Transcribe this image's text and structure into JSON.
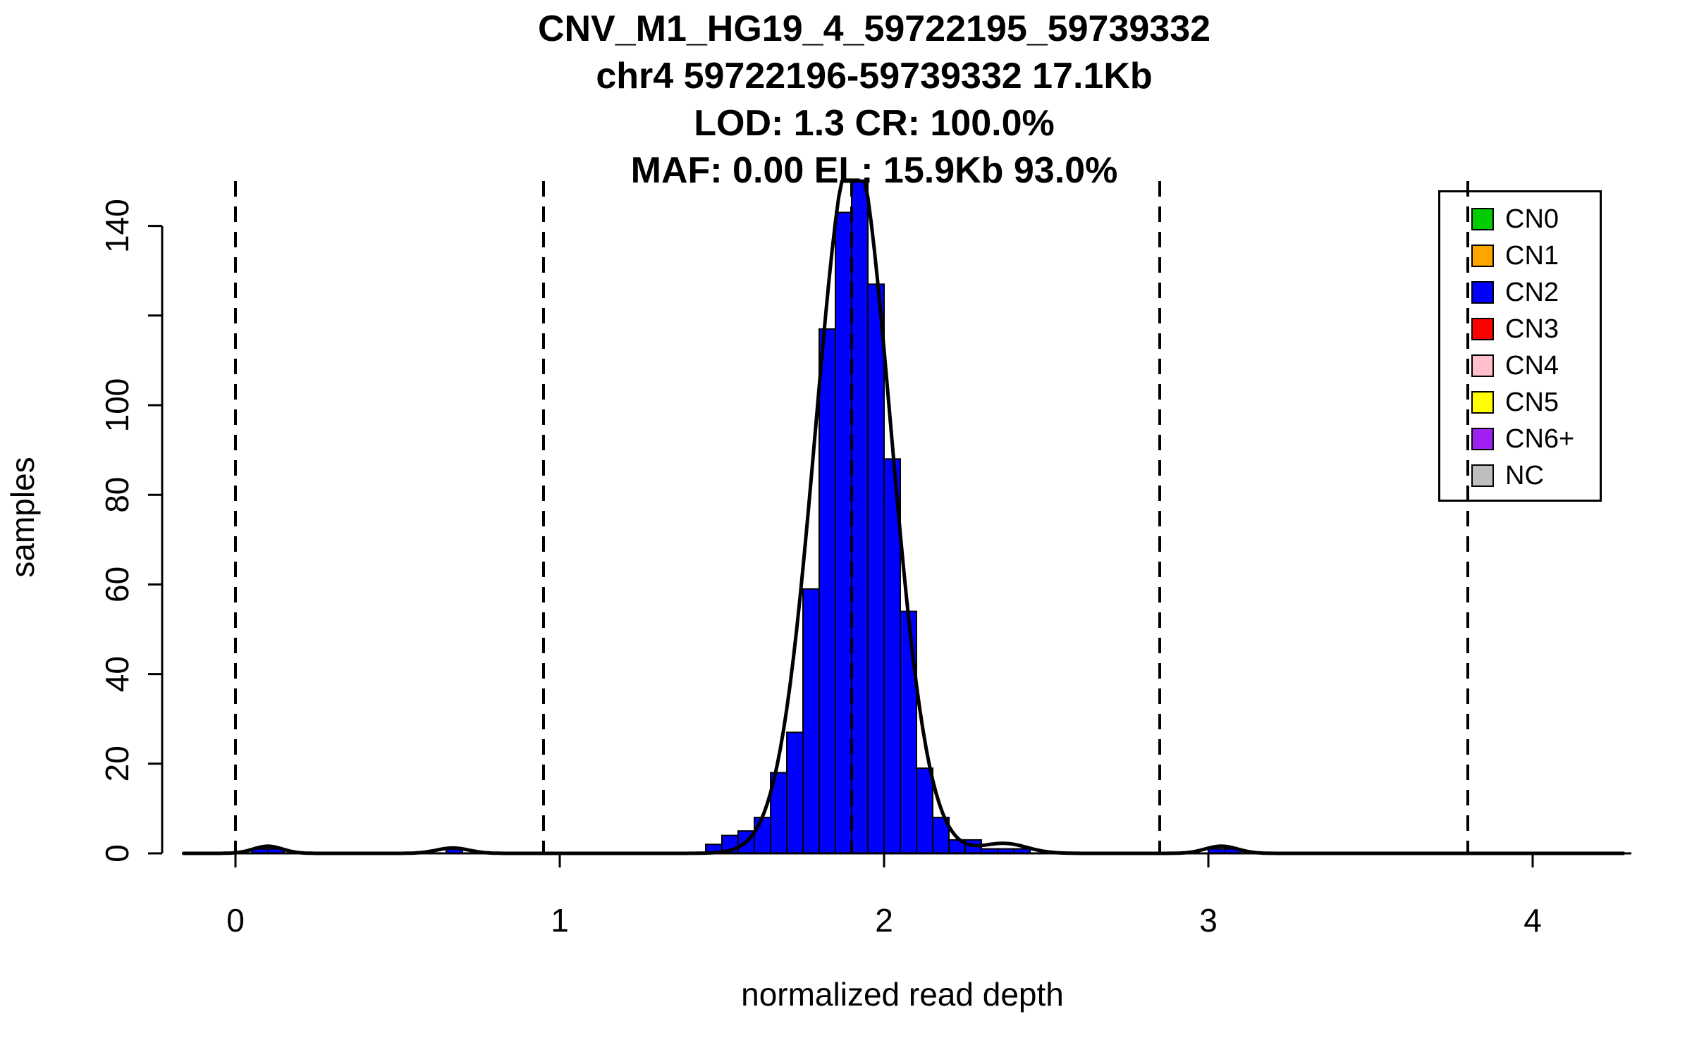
{
  "chart_data": {
    "type": "bar",
    "subtype": "histogram",
    "title_lines": [
      "CNV_M1_HG19_4_59722195_59739332",
      "chr4 59722196-59739332 17.1Kb",
      "LOD: 1.3 CR: 100.0%",
      "MAF: 0.00 EL: 15.9Kb 93.0%"
    ],
    "xlabel": "normalized read depth",
    "ylabel": "samples",
    "xlim": [
      -0.16,
      4.28
    ],
    "ylim": [
      0,
      150
    ],
    "grid": false,
    "x_ticks": [
      {
        "value": 0,
        "label": "0"
      },
      {
        "value": 1,
        "label": "1"
      },
      {
        "value": 2,
        "label": "2"
      },
      {
        "value": 3,
        "label": "3"
      },
      {
        "value": 4,
        "label": "4"
      }
    ],
    "y_ticks": [
      {
        "value": 0,
        "label": "0"
      },
      {
        "value": 20,
        "label": "20"
      },
      {
        "value": 40,
        "label": "40"
      },
      {
        "value": 60,
        "label": "60"
      },
      {
        "value": 80,
        "label": "80"
      },
      {
        "value": 100,
        "label": "100"
      },
      {
        "value": 120,
        "label": ""
      },
      {
        "value": 140,
        "label": "140"
      }
    ],
    "bar_color": "#0000FF",
    "bar_border_color": "#000000",
    "bin_width": 0.05,
    "bins": [
      {
        "start": 0.05,
        "count": 1
      },
      {
        "start": 0.1,
        "count": 1
      },
      {
        "start": 0.65,
        "count": 1
      },
      {
        "start": 1.45,
        "count": 2
      },
      {
        "start": 1.5,
        "count": 4
      },
      {
        "start": 1.55,
        "count": 5
      },
      {
        "start": 1.6,
        "count": 8
      },
      {
        "start": 1.65,
        "count": 18
      },
      {
        "start": 1.7,
        "count": 27
      },
      {
        "start": 1.75,
        "count": 59
      },
      {
        "start": 1.8,
        "count": 117
      },
      {
        "start": 1.85,
        "count": 143
      },
      {
        "start": 1.9,
        "count": 152
      },
      {
        "start": 1.95,
        "count": 127
      },
      {
        "start": 2.0,
        "count": 88
      },
      {
        "start": 2.05,
        "count": 54
      },
      {
        "start": 2.1,
        "count": 19
      },
      {
        "start": 2.15,
        "count": 8
      },
      {
        "start": 2.2,
        "count": 3
      },
      {
        "start": 2.25,
        "count": 3
      },
      {
        "start": 2.3,
        "count": 1
      },
      {
        "start": 2.35,
        "count": 1
      },
      {
        "start": 2.4,
        "count": 1
      },
      {
        "start": 3.0,
        "count": 1
      },
      {
        "start": 3.05,
        "count": 1
      }
    ],
    "vlines": {
      "color": "#000000",
      "style": "dashed",
      "positions": [
        0,
        0.95,
        1.9,
        2.85,
        3.8
      ]
    },
    "curve": {
      "color": "#000000",
      "gaussians": [
        {
          "mu": 1.905,
          "sigma": 0.115,
          "amp": 158
        },
        {
          "mu": 0.1,
          "sigma": 0.045,
          "amp": 1.6
        },
        {
          "mu": 0.67,
          "sigma": 0.05,
          "amp": 1.2
        },
        {
          "mu": 2.37,
          "sigma": 0.07,
          "amp": 2.2
        },
        {
          "mu": 3.04,
          "sigma": 0.05,
          "amp": 1.6
        }
      ]
    },
    "legend": {
      "position": "top-right",
      "items": [
        {
          "label": "CN0",
          "color": "#00CC00"
        },
        {
          "label": "CN1",
          "color": "#FFA500"
        },
        {
          "label": "CN2",
          "color": "#0000FF"
        },
        {
          "label": "CN3",
          "color": "#FF0000"
        },
        {
          "label": "CN4",
          "color": "#FFC0CB"
        },
        {
          "label": "CN5",
          "color": "#FFFF00"
        },
        {
          "label": "CN6+",
          "color": "#A020F0"
        },
        {
          "label": "NC",
          "color": "#BEBEBE"
        }
      ]
    }
  }
}
